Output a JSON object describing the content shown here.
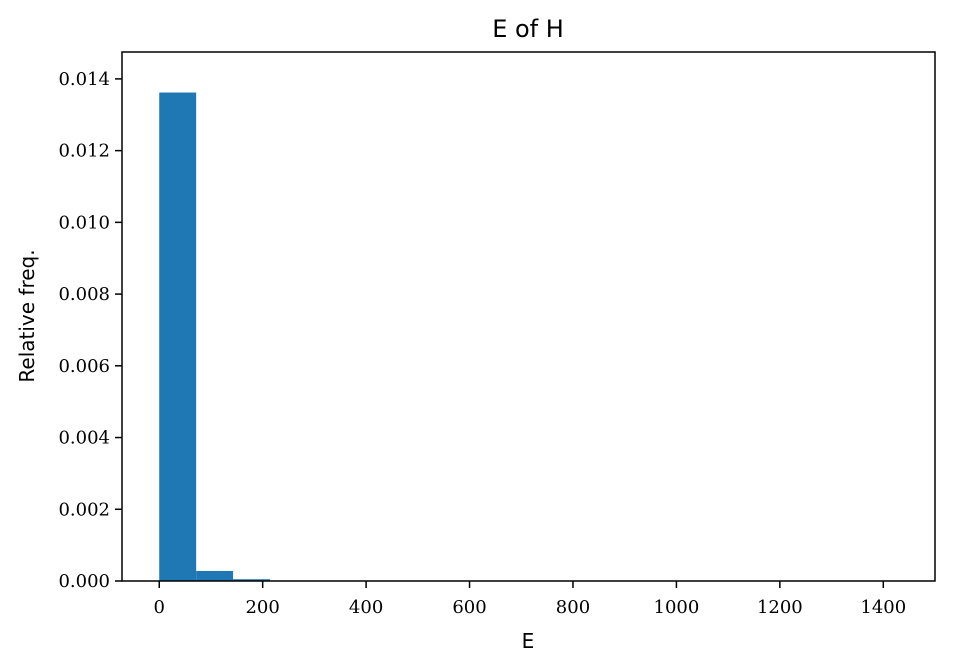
{
  "chart_data": {
    "type": "bar",
    "title": "E of H",
    "xlabel": "E",
    "ylabel": "Relative freq.",
    "xlim": [
      -72,
      1500
    ],
    "ylim": [
      0,
      0.01475
    ],
    "x_ticks": [
      0,
      200,
      400,
      600,
      800,
      1000,
      1200,
      1400
    ],
    "x_tick_labels": [
      "0",
      "200",
      "400",
      "600",
      "800",
      "1000",
      "1200",
      "1400"
    ],
    "y_ticks": [
      0,
      0.002,
      0.004,
      0.006,
      0.008,
      0.01,
      0.012,
      0.014
    ],
    "y_tick_labels": [
      "0.000",
      "0.002",
      "0.004",
      "0.006",
      "0.008",
      "0.010",
      "0.012",
      "0.014"
    ],
    "bin_edges": [
      0,
      71.4,
      142.8,
      214.2,
      285.6,
      357,
      428.4,
      499.8,
      571.2,
      642.6,
      714,
      785.4,
      856.8,
      928.2,
      999.6,
      1071,
      1142.4,
      1213.8,
      1285.2,
      1356.6,
      1428
    ],
    "values": [
      0.01362,
      0.00028,
      5e-05,
      1e-05,
      5e-06,
      3e-06,
      2e-06,
      2e-06,
      1e-06,
      1e-06,
      1e-06,
      1e-06,
      1e-06,
      1e-06,
      1e-06,
      1e-06,
      1e-06,
      1e-06,
      1e-06,
      1e-06
    ],
    "bar_color": "#1f77b4",
    "grid": false,
    "legend": false
  }
}
